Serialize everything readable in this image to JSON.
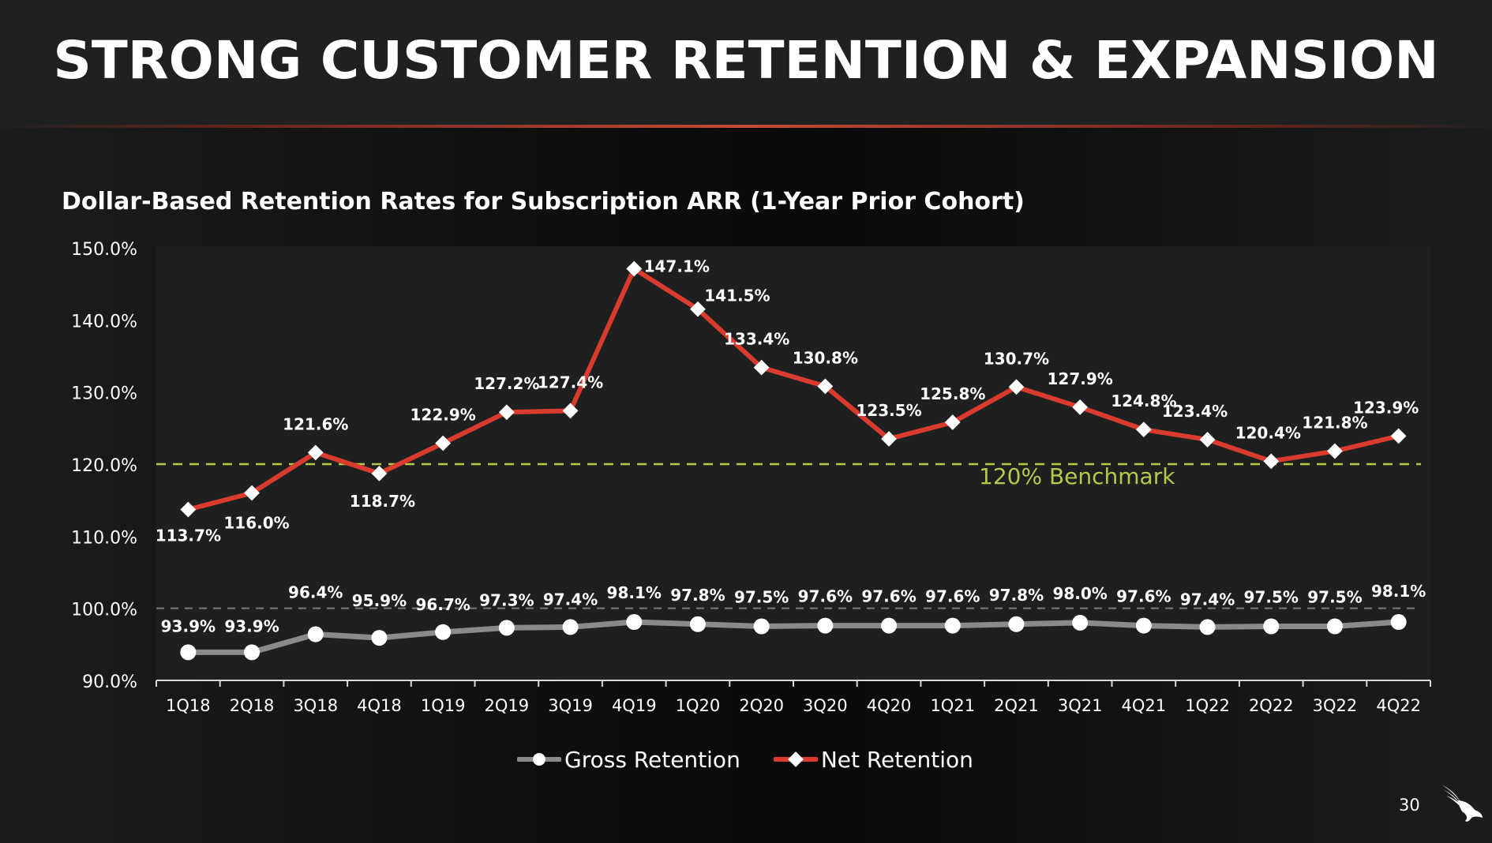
{
  "header": {
    "title": "STRONG CUSTOMER RETENTION & EXPANSION"
  },
  "footer": {
    "page_number": "30",
    "logo_icon": "falcon-logo"
  },
  "colors": {
    "net": "#d93b2f",
    "gross": "#8a8a8a",
    "benchmark": "#b5c94a",
    "marker": "#ffffff"
  },
  "chart_data": {
    "type": "line",
    "title": "Dollar-Based Retention Rates for Subscription ARR (1-Year Prior Cohort)",
    "xlabel": "",
    "ylabel": "",
    "ylim": [
      90,
      150
    ],
    "yticks": [
      90,
      100,
      110,
      120,
      130,
      140,
      150
    ],
    "ytick_labels": [
      "90.0%",
      "100.0%",
      "110.0%",
      "120.0%",
      "130.0%",
      "140.0%",
      "150.0%"
    ],
    "categories": [
      "1Q18",
      "2Q18",
      "3Q18",
      "4Q18",
      "1Q19",
      "2Q19",
      "3Q19",
      "4Q19",
      "1Q20",
      "2Q20",
      "3Q20",
      "4Q20",
      "1Q21",
      "2Q21",
      "3Q21",
      "4Q21",
      "1Q22",
      "2Q22",
      "3Q22",
      "4Q22"
    ],
    "series": [
      {
        "name": "Gross Retention",
        "marker": "circle",
        "values": [
          93.9,
          93.9,
          96.4,
          95.9,
          96.7,
          97.3,
          97.4,
          98.1,
          97.8,
          97.5,
          97.6,
          97.6,
          97.6,
          97.8,
          98.0,
          97.6,
          97.4,
          97.5,
          97.5,
          98.1
        ],
        "labels": [
          "93.9%",
          "93.9%",
          "96.4%",
          "95.9%",
          "96.7%",
          "97.3%",
          "97.4%",
          "98.1%",
          "97.8%",
          "97.5%",
          "97.6%",
          "97.6%",
          "97.6%",
          "97.8%",
          "98.0%",
          "97.6%",
          "97.4%",
          "97.5%",
          "97.5%",
          "98.1%"
        ]
      },
      {
        "name": "Net Retention",
        "marker": "diamond",
        "values": [
          113.7,
          116.0,
          121.6,
          118.7,
          122.9,
          127.2,
          127.4,
          147.1,
          141.5,
          133.4,
          130.8,
          123.5,
          125.8,
          130.7,
          127.9,
          124.8,
          123.4,
          120.4,
          121.8,
          123.9
        ],
        "labels": [
          "113.7%",
          "116.0%",
          "121.6%",
          "118.7%",
          "122.9%",
          "127.2%",
          "127.4%",
          "147.1%",
          "141.5%",
          "133.4%",
          "130.8%",
          "123.5%",
          "125.8%",
          "130.7%",
          "127.9%",
          "124.8%",
          "123.4%",
          "120.4%",
          "121.8%",
          "123.9%"
        ]
      }
    ],
    "reference_lines": [
      {
        "value": 120,
        "label": "120% Benchmark",
        "style": "dashed"
      },
      {
        "value": 100,
        "label": "",
        "style": "dashed"
      }
    ],
    "legend": {
      "placement": "bottom-center",
      "entries": [
        "Gross Retention",
        "Net Retention"
      ]
    },
    "grid": false
  }
}
